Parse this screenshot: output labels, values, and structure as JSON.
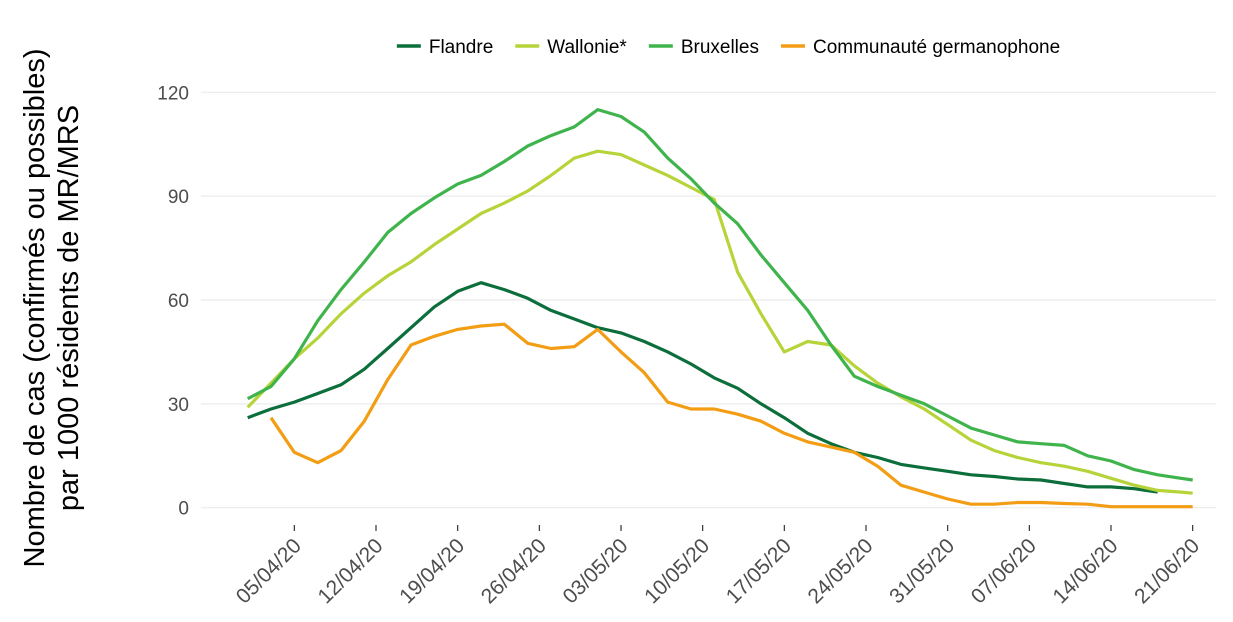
{
  "chart_data": {
    "type": "line",
    "ylabel": [
      "Nombre de cas (confirmés ou possibles)",
      "par 1000 résidents de MR/MRS"
    ],
    "x": [
      "01/04/20",
      "03/04/20",
      "05/04/20",
      "07/04/20",
      "09/04/20",
      "11/04/20",
      "13/04/20",
      "15/04/20",
      "17/04/20",
      "19/04/20",
      "21/04/20",
      "23/04/20",
      "25/04/20",
      "27/04/20",
      "29/04/20",
      "01/05/20",
      "03/05/20",
      "05/05/20",
      "07/05/20",
      "09/05/20",
      "11/05/20",
      "13/05/20",
      "15/05/20",
      "17/05/20",
      "19/05/20",
      "21/05/20",
      "23/05/20",
      "25/05/20",
      "27/05/20",
      "29/05/20",
      "31/05/20",
      "02/06/20",
      "04/06/20",
      "06/06/20",
      "08/06/20",
      "10/06/20",
      "12/06/20",
      "14/06/20",
      "16/06/20",
      "18/06/20",
      "20/06/20",
      "21/06/20"
    ],
    "series": [
      {
        "name": "Flandre",
        "color": "#0b6e3b",
        "values": [
          26,
          28.5,
          30.5,
          33,
          35.5,
          40,
          46,
          52,
          58,
          62.5,
          65,
          63,
          60.5,
          57,
          54.5,
          52,
          50.5,
          48,
          45,
          41.5,
          37.5,
          34.5,
          30,
          26,
          21.5,
          18.5,
          16,
          14.5,
          12.5,
          11.5,
          10.5,
          9.5,
          9,
          8.3,
          8,
          7,
          6,
          6,
          5.5,
          4.5,
          null,
          null
        ]
      },
      {
        "name": "Wallonie*",
        "color": "#b6d43a",
        "values": [
          29,
          36,
          43,
          49,
          56,
          62,
          67,
          71,
          76,
          80.5,
          85,
          88,
          91.5,
          96,
          101,
          103,
          102,
          99,
          96,
          92.5,
          89,
          68,
          56,
          45,
          48,
          47,
          41,
          36,
          32,
          28.5,
          24,
          19.5,
          16.5,
          14.5,
          13,
          12,
          10.5,
          8.5,
          6.5,
          5,
          4.5,
          4.2
        ]
      },
      {
        "name": "Bruxelles",
        "color": "#3fb44c",
        "values": [
          31.5,
          35,
          43,
          54,
          63,
          71,
          79.5,
          85,
          89.5,
          93.5,
          96,
          100,
          104.5,
          107.5,
          110,
          115,
          113,
          108.5,
          101,
          95,
          88,
          82,
          73,
          65,
          57,
          47,
          38,
          35,
          32.5,
          30,
          26.5,
          23,
          21,
          19,
          18.5,
          18,
          15,
          13.5,
          11,
          9.5,
          8.5,
          8
        ]
      },
      {
        "name": "Communauté germanophone",
        "color": "#f29d13",
        "values": [
          null,
          26,
          16,
          13,
          16.5,
          25,
          37,
          47,
          49.5,
          51.5,
          52.5,
          53,
          47.5,
          46,
          46.5,
          51.5,
          45,
          39,
          30.5,
          28.5,
          28.5,
          27,
          25,
          21.5,
          19,
          17.5,
          16,
          12,
          6.5,
          4.5,
          2.5,
          1,
          1,
          1.5,
          1.5,
          1.2,
          1,
          0.3,
          0.3,
          0.3,
          0.3,
          0.3
        ]
      }
    ],
    "xlim": [
      "28/03/20",
      "23/06/20"
    ],
    "xticks": [
      "05/04/20",
      "12/04/20",
      "19/04/20",
      "26/04/20",
      "03/05/20",
      "10/05/20",
      "17/05/20",
      "24/05/20",
      "31/05/20",
      "07/06/20",
      "14/06/20",
      "21/06/20"
    ],
    "ylim": [
      -5,
      125
    ],
    "yticks": [
      0,
      30,
      60,
      90,
      120
    ],
    "grid": true,
    "legend": "top"
  }
}
